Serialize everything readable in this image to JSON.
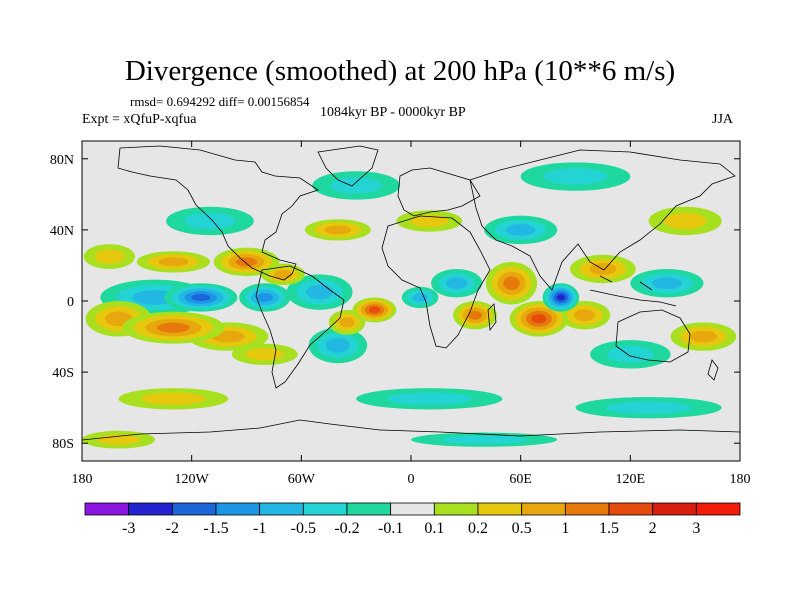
{
  "chart_data": {
    "type": "heatmap",
    "title": "Divergence (smoothed) at 200 hPa (10**6 m/s)",
    "stats": "rmsd= 0.694292 diff= 0.00156854",
    "experiment": "Expt = xQfuP-xqfua",
    "period": "1084kyr BP - 0000kyr BP",
    "season": "JJA",
    "xlim": [
      -180,
      180
    ],
    "ylim": [
      -90,
      90
    ],
    "x_ticks": [
      {
        "value": -180,
        "label": "180"
      },
      {
        "value": -120,
        "label": "120W"
      },
      {
        "value": -60,
        "label": "60W"
      },
      {
        "value": 0,
        "label": "0"
      },
      {
        "value": 60,
        "label": "60E"
      },
      {
        "value": 120,
        "label": "120E"
      },
      {
        "value": 180,
        "label": "180"
      }
    ],
    "y_ticks": [
      {
        "value": 80,
        "label": "80N"
      },
      {
        "value": 40,
        "label": "40N"
      },
      {
        "value": 0,
        "label": "0"
      },
      {
        "value": -40,
        "label": "40S"
      },
      {
        "value": -80,
        "label": "80S"
      }
    ],
    "colorbar": {
      "levels": [
        "-3",
        "-2",
        "-1.5",
        "-1",
        "-0.5",
        "-0.2",
        "-0.1",
        "0.1",
        "0.2",
        "0.5",
        "1",
        "1.5",
        "2",
        "3"
      ],
      "colors": [
        "#8b16e0",
        "#2323cf",
        "#1c64d8",
        "#1c95e6",
        "#22b8e3",
        "#24d4d4",
        "#1ed8a0",
        "#e6e6e6",
        "#a8e020",
        "#e6c80e",
        "#e6a80c",
        "#e6780c",
        "#e64a0c",
        "#d81e0c",
        "#f21c0c"
      ]
    },
    "anomalies": [
      {
        "lon": -115,
        "lat": 2,
        "value": -2.3,
        "rlon": 20,
        "rlat": 8
      },
      {
        "lon": -140,
        "lat": 2,
        "value": -0.9,
        "rlon": 30,
        "rlat": 10
      },
      {
        "lon": -80,
        "lat": 2,
        "value": -1.6,
        "rlon": 14,
        "rlat": 8
      },
      {
        "lon": -50,
        "lat": 5,
        "value": -0.9,
        "rlon": 18,
        "rlat": 10
      },
      {
        "lon": -130,
        "lat": -15,
        "value": 1.6,
        "rlon": 28,
        "rlat": 9
      },
      {
        "lon": -160,
        "lat": -10,
        "value": 1.2,
        "rlon": 18,
        "rlat": 10
      },
      {
        "lon": -100,
        "lat": -20,
        "value": 1.1,
        "rlon": 22,
        "rlat": 8
      },
      {
        "lon": -90,
        "lat": 22,
        "value": 1.3,
        "rlon": 18,
        "rlat": 8
      },
      {
        "lon": -70,
        "lat": 15,
        "value": 0.9,
        "rlon": 12,
        "rlat": 6
      },
      {
        "lon": -130,
        "lat": 22,
        "value": 1.0,
        "rlon": 20,
        "rlat": 6
      },
      {
        "lon": -165,
        "lat": 25,
        "value": 0.6,
        "rlon": 14,
        "rlat": 7
      },
      {
        "lon": -80,
        "lat": -30,
        "value": 0.7,
        "rlon": 18,
        "rlat": 6
      },
      {
        "lon": -40,
        "lat": -25,
        "value": -0.8,
        "rlon": 16,
        "rlat": 10
      },
      {
        "lon": -20,
        "lat": -5,
        "value": 2.1,
        "rlon": 12,
        "rlat": 7
      },
      {
        "lon": -35,
        "lat": -12,
        "value": 1.1,
        "rlon": 10,
        "rlat": 7
      },
      {
        "lon": 5,
        "lat": 2,
        "value": -1.2,
        "rlon": 10,
        "rlat": 6
      },
      {
        "lon": 25,
        "lat": 10,
        "value": -1.0,
        "rlon": 14,
        "rlat": 8
      },
      {
        "lon": 35,
        "lat": -8,
        "value": 1.4,
        "rlon": 12,
        "rlat": 8
      },
      {
        "lon": 55,
        "lat": 10,
        "value": 1.6,
        "rlon": 14,
        "rlat": 12
      },
      {
        "lon": 70,
        "lat": -10,
        "value": 2.1,
        "rlon": 16,
        "rlat": 10
      },
      {
        "lon": 82,
        "lat": 2,
        "value": -2.5,
        "rlon": 10,
        "rlat": 8
      },
      {
        "lon": 95,
        "lat": -8,
        "value": 1.0,
        "rlon": 14,
        "rlat": 8
      },
      {
        "lon": 105,
        "lat": 18,
        "value": 1.1,
        "rlon": 18,
        "rlat": 8
      },
      {
        "lon": 140,
        "lat": 10,
        "value": -0.9,
        "rlon": 20,
        "rlat": 8
      },
      {
        "lon": 160,
        "lat": -20,
        "value": 0.9,
        "rlon": 18,
        "rlat": 8
      },
      {
        "lon": 120,
        "lat": -30,
        "value": -0.7,
        "rlon": 22,
        "rlat": 8
      },
      {
        "lon": 60,
        "lat": 40,
        "value": -0.8,
        "rlon": 20,
        "rlat": 8
      },
      {
        "lon": 10,
        "lat": 45,
        "value": 0.7,
        "rlon": 18,
        "rlat": 6
      },
      {
        "lon": -40,
        "lat": 40,
        "value": 0.8,
        "rlon": 18,
        "rlat": 6
      },
      {
        "lon": -110,
        "lat": 45,
        "value": -0.7,
        "rlon": 24,
        "rlat": 8
      },
      {
        "lon": 150,
        "lat": 45,
        "value": 0.7,
        "rlon": 20,
        "rlat": 8
      },
      {
        "lon": 90,
        "lat": 70,
        "value": -0.6,
        "rlon": 30,
        "rlat": 8
      },
      {
        "lon": -30,
        "lat": 65,
        "value": -0.7,
        "rlon": 24,
        "rlat": 8
      },
      {
        "lon": 10,
        "lat": -55,
        "value": -0.6,
        "rlon": 40,
        "rlat": 6
      },
      {
        "lon": -130,
        "lat": -55,
        "value": 0.6,
        "rlon": 30,
        "rlat": 6
      },
      {
        "lon": 130,
        "lat": -60,
        "value": -0.5,
        "rlon": 40,
        "rlat": 6
      },
      {
        "lon": -160,
        "lat": -78,
        "value": 0.5,
        "rlon": 20,
        "rlat": 5
      },
      {
        "lon": 40,
        "lat": -78,
        "value": -0.5,
        "rlon": 40,
        "rlat": 4
      }
    ]
  }
}
